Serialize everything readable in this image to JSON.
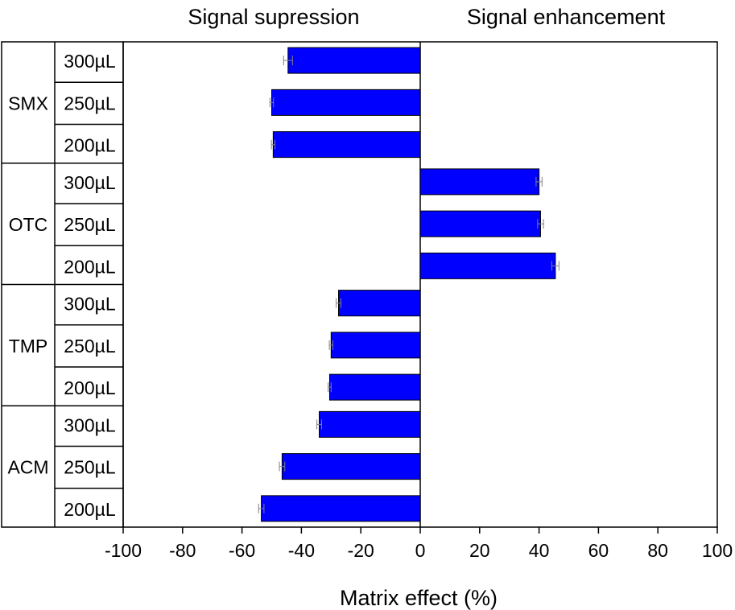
{
  "chart_data": {
    "type": "bar",
    "orientation": "horizontal",
    "header_left": "Signal supression",
    "header_right": "Signal enhancement",
    "xlabel": "Matrix effect (%)",
    "xlim": [
      -100,
      100
    ],
    "xticks": [
      "-100",
      "-80",
      "-60",
      "-40",
      "-20",
      "0",
      "20",
      "40",
      "60",
      "80",
      "100"
    ],
    "grid": false,
    "bar_color": "#0000ff",
    "errorbar_color": "#808080",
    "groups": [
      {
        "name": "SMX",
        "bars": [
          {
            "label": "300µL",
            "value": -44.5,
            "error": 1.5
          },
          {
            "label": "250µL",
            "value": -50.0,
            "error": 0.6
          },
          {
            "label": "200µL",
            "value": -49.5,
            "error": 0.6
          }
        ]
      },
      {
        "name": "OTC",
        "bars": [
          {
            "label": "300µL",
            "value": 40.0,
            "error": 1.0
          },
          {
            "label": "250µL",
            "value": 40.5,
            "error": 1.0
          },
          {
            "label": "200µL",
            "value": 45.5,
            "error": 1.2
          }
        ]
      },
      {
        "name": "TMP",
        "bars": [
          {
            "label": "300µL",
            "value": -27.5,
            "error": 0.8
          },
          {
            "label": "250µL",
            "value": -30.0,
            "error": 0.6
          },
          {
            "label": "200µL",
            "value": -30.5,
            "error": 0.5
          }
        ]
      },
      {
        "name": "ACM",
        "bars": [
          {
            "label": "300µL",
            "value": -34.0,
            "error": 0.8
          },
          {
            "label": "250µL",
            "value": -46.5,
            "error": 0.9
          },
          {
            "label": "200µL",
            "value": -53.5,
            "error": 0.9
          }
        ]
      }
    ]
  }
}
